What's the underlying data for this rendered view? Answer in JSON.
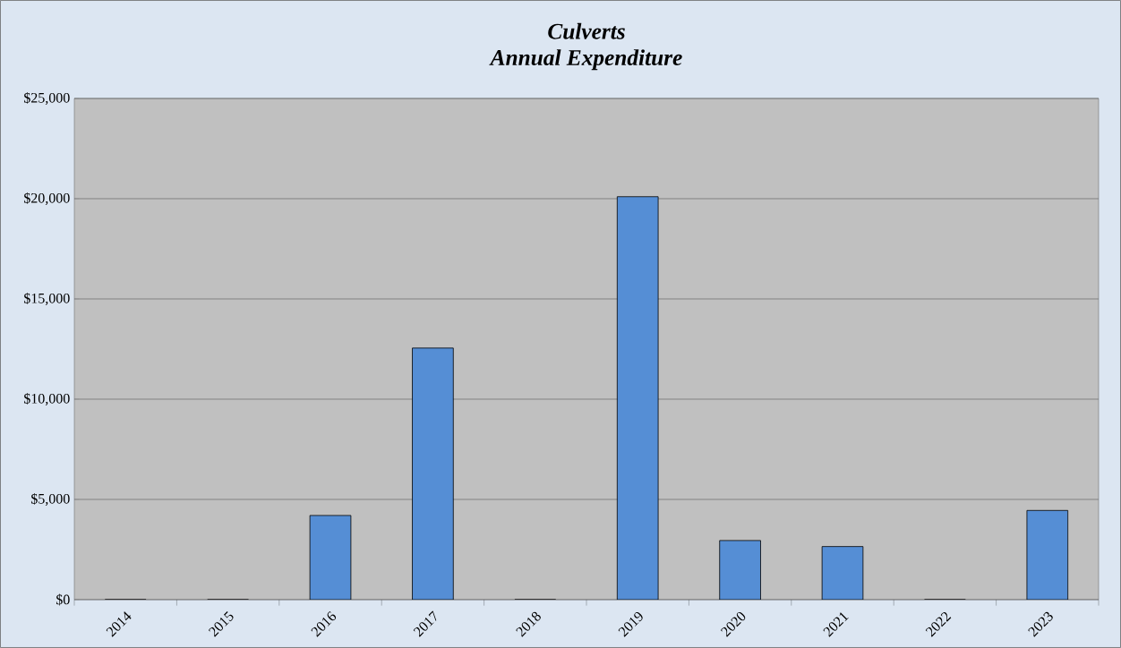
{
  "chart_data": {
    "type": "bar",
    "title": "Culverts\nAnnual Expenditure",
    "categories": [
      "2014",
      "2015",
      "2016",
      "2017",
      "2018",
      "2019",
      "2020",
      "2021",
      "2022",
      "2023"
    ],
    "values": [
      0,
      0,
      4200,
      12550,
      0,
      20100,
      2950,
      2650,
      0,
      4450
    ],
    "color": "#558ed5",
    "ylim": [
      0,
      25000
    ],
    "yticks": [
      {
        "value": 0,
        "label": "$0"
      },
      {
        "value": 5000,
        "label": "$5,000"
      },
      {
        "value": 10000,
        "label": "$10,000"
      },
      {
        "value": 15000,
        "label": "$15,000"
      },
      {
        "value": 20000,
        "label": "$20,000"
      },
      {
        "value": 25000,
        "label": "$25,000"
      }
    ],
    "grid": "y"
  }
}
